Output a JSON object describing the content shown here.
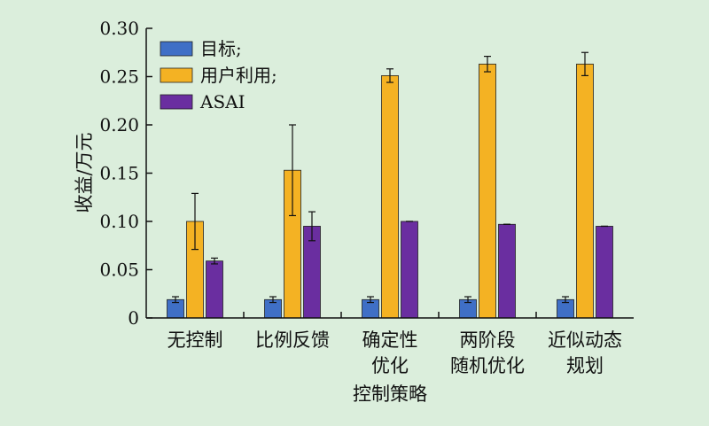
{
  "chart_data": {
    "type": "bar",
    "title": "",
    "xlabel": "控制策略",
    "ylabel": "收益/万元",
    "ylim": [
      0,
      0.3
    ],
    "yticks": [
      "0",
      "0.05",
      "0.10",
      "0.15",
      "0.20",
      "0.25",
      "0.30"
    ],
    "grid": false,
    "legend_position": "top-left",
    "categories": [
      [
        "无控制"
      ],
      [
        "比例反馈"
      ],
      [
        "确定性",
        "优化"
      ],
      [
        "两阶段",
        "随机优化"
      ],
      [
        "近似动态",
        "规划"
      ]
    ],
    "series": [
      {
        "name": "目标;",
        "color": "#3f6fc6",
        "values": [
          0.019,
          0.019,
          0.019,
          0.019,
          0.019
        ],
        "errors": [
          0.003,
          0.003,
          0.003,
          0.003,
          0.003
        ]
      },
      {
        "name": "用户利用;",
        "color": "#f4b223",
        "values": [
          0.1,
          0.153,
          0.251,
          0.263,
          0.263
        ],
        "errors": [
          0.029,
          0.047,
          0.007,
          0.008,
          0.012
        ]
      },
      {
        "name": "ASAI",
        "color": "#6a2ea0",
        "values": [
          0.059,
          0.095,
          0.1,
          0.097,
          0.095
        ],
        "errors": [
          0.003,
          0.015,
          0.0,
          0.0,
          0.0
        ]
      }
    ]
  }
}
